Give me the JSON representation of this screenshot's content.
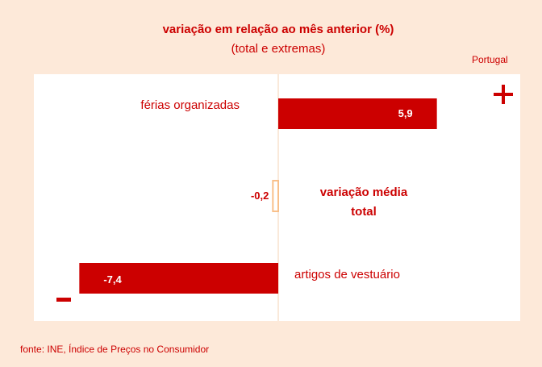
{
  "chart_data": {
    "type": "hbar",
    "title": "variação em relação ao mês anterior (%)",
    "subtitle": "(total e extremas)",
    "region": "Portugal",
    "categories": [
      "férias organizadas",
      "variação média total",
      "artigos de vestuário"
    ],
    "values": [
      5.9,
      -0.2,
      -7.4
    ],
    "value_labels": [
      "5,9",
      "-0,2",
      "-7,4"
    ],
    "colors": [
      "#cc0000",
      "#f9c08a",
      "#cc0000"
    ],
    "bar_styles": [
      "filled",
      "outlined",
      "filled"
    ],
    "xlim": [
      -9,
      9
    ],
    "source": "fonte: INE, Índice de Preços no Consumidor"
  }
}
